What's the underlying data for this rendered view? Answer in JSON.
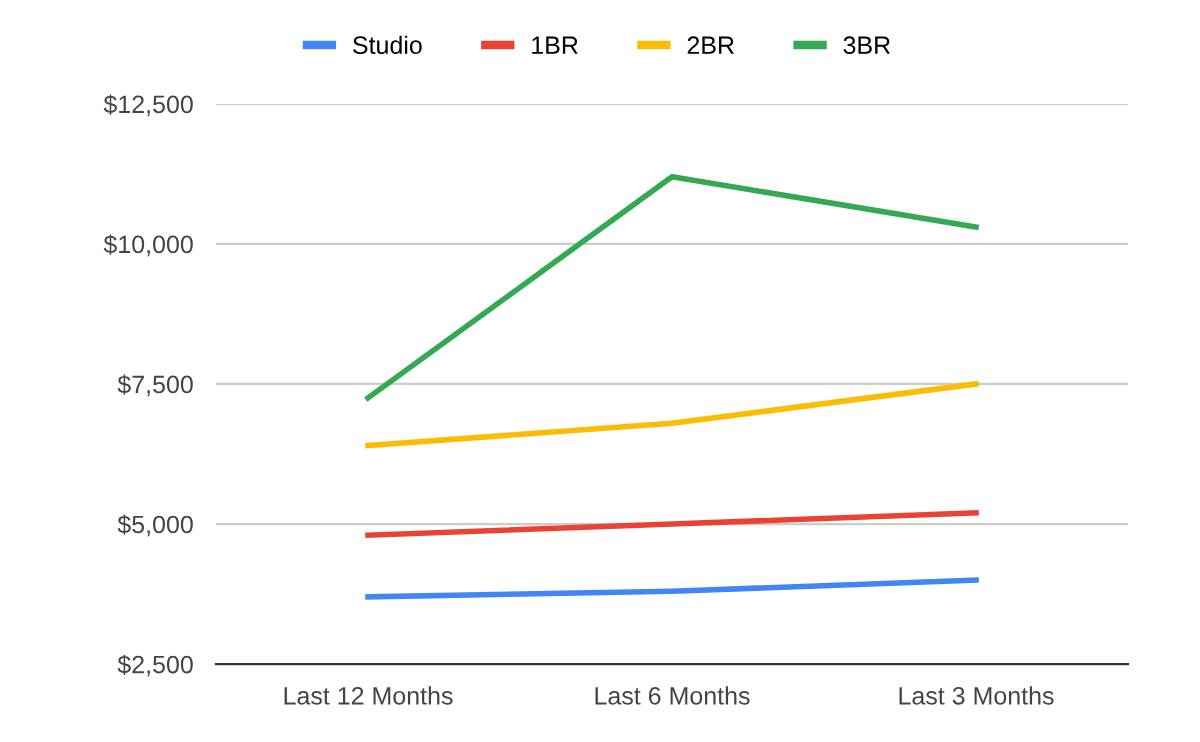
{
  "chart_data": {
    "type": "line",
    "categories": [
      "Last 12 Months",
      "Last 6 Months",
      "Last 3 Months"
    ],
    "series": [
      {
        "name": "Studio",
        "color": "#4285f4",
        "values": [
          3700,
          3800,
          4000
        ]
      },
      {
        "name": "1BR",
        "color": "#ea4335",
        "values": [
          4800,
          5000,
          5200
        ]
      },
      {
        "name": "2BR",
        "color": "#fbbc04",
        "values": [
          6400,
          6800,
          7500
        ]
      },
      {
        "name": "3BR",
        "color": "#34a853",
        "values": [
          7250,
          11200,
          10300
        ]
      }
    ],
    "ylim": [
      2500,
      12500
    ],
    "yticks": [
      {
        "value": 2500,
        "label": "$2,500"
      },
      {
        "value": 5000,
        "label": "$5,000"
      },
      {
        "value": 7500,
        "label": "$7,500"
      },
      {
        "value": 10000,
        "label": "$10,000"
      },
      {
        "value": 12500,
        "label": "$12,500"
      }
    ],
    "grid": "y",
    "legend": "top",
    "marker": "none",
    "line_style": "solid"
  }
}
